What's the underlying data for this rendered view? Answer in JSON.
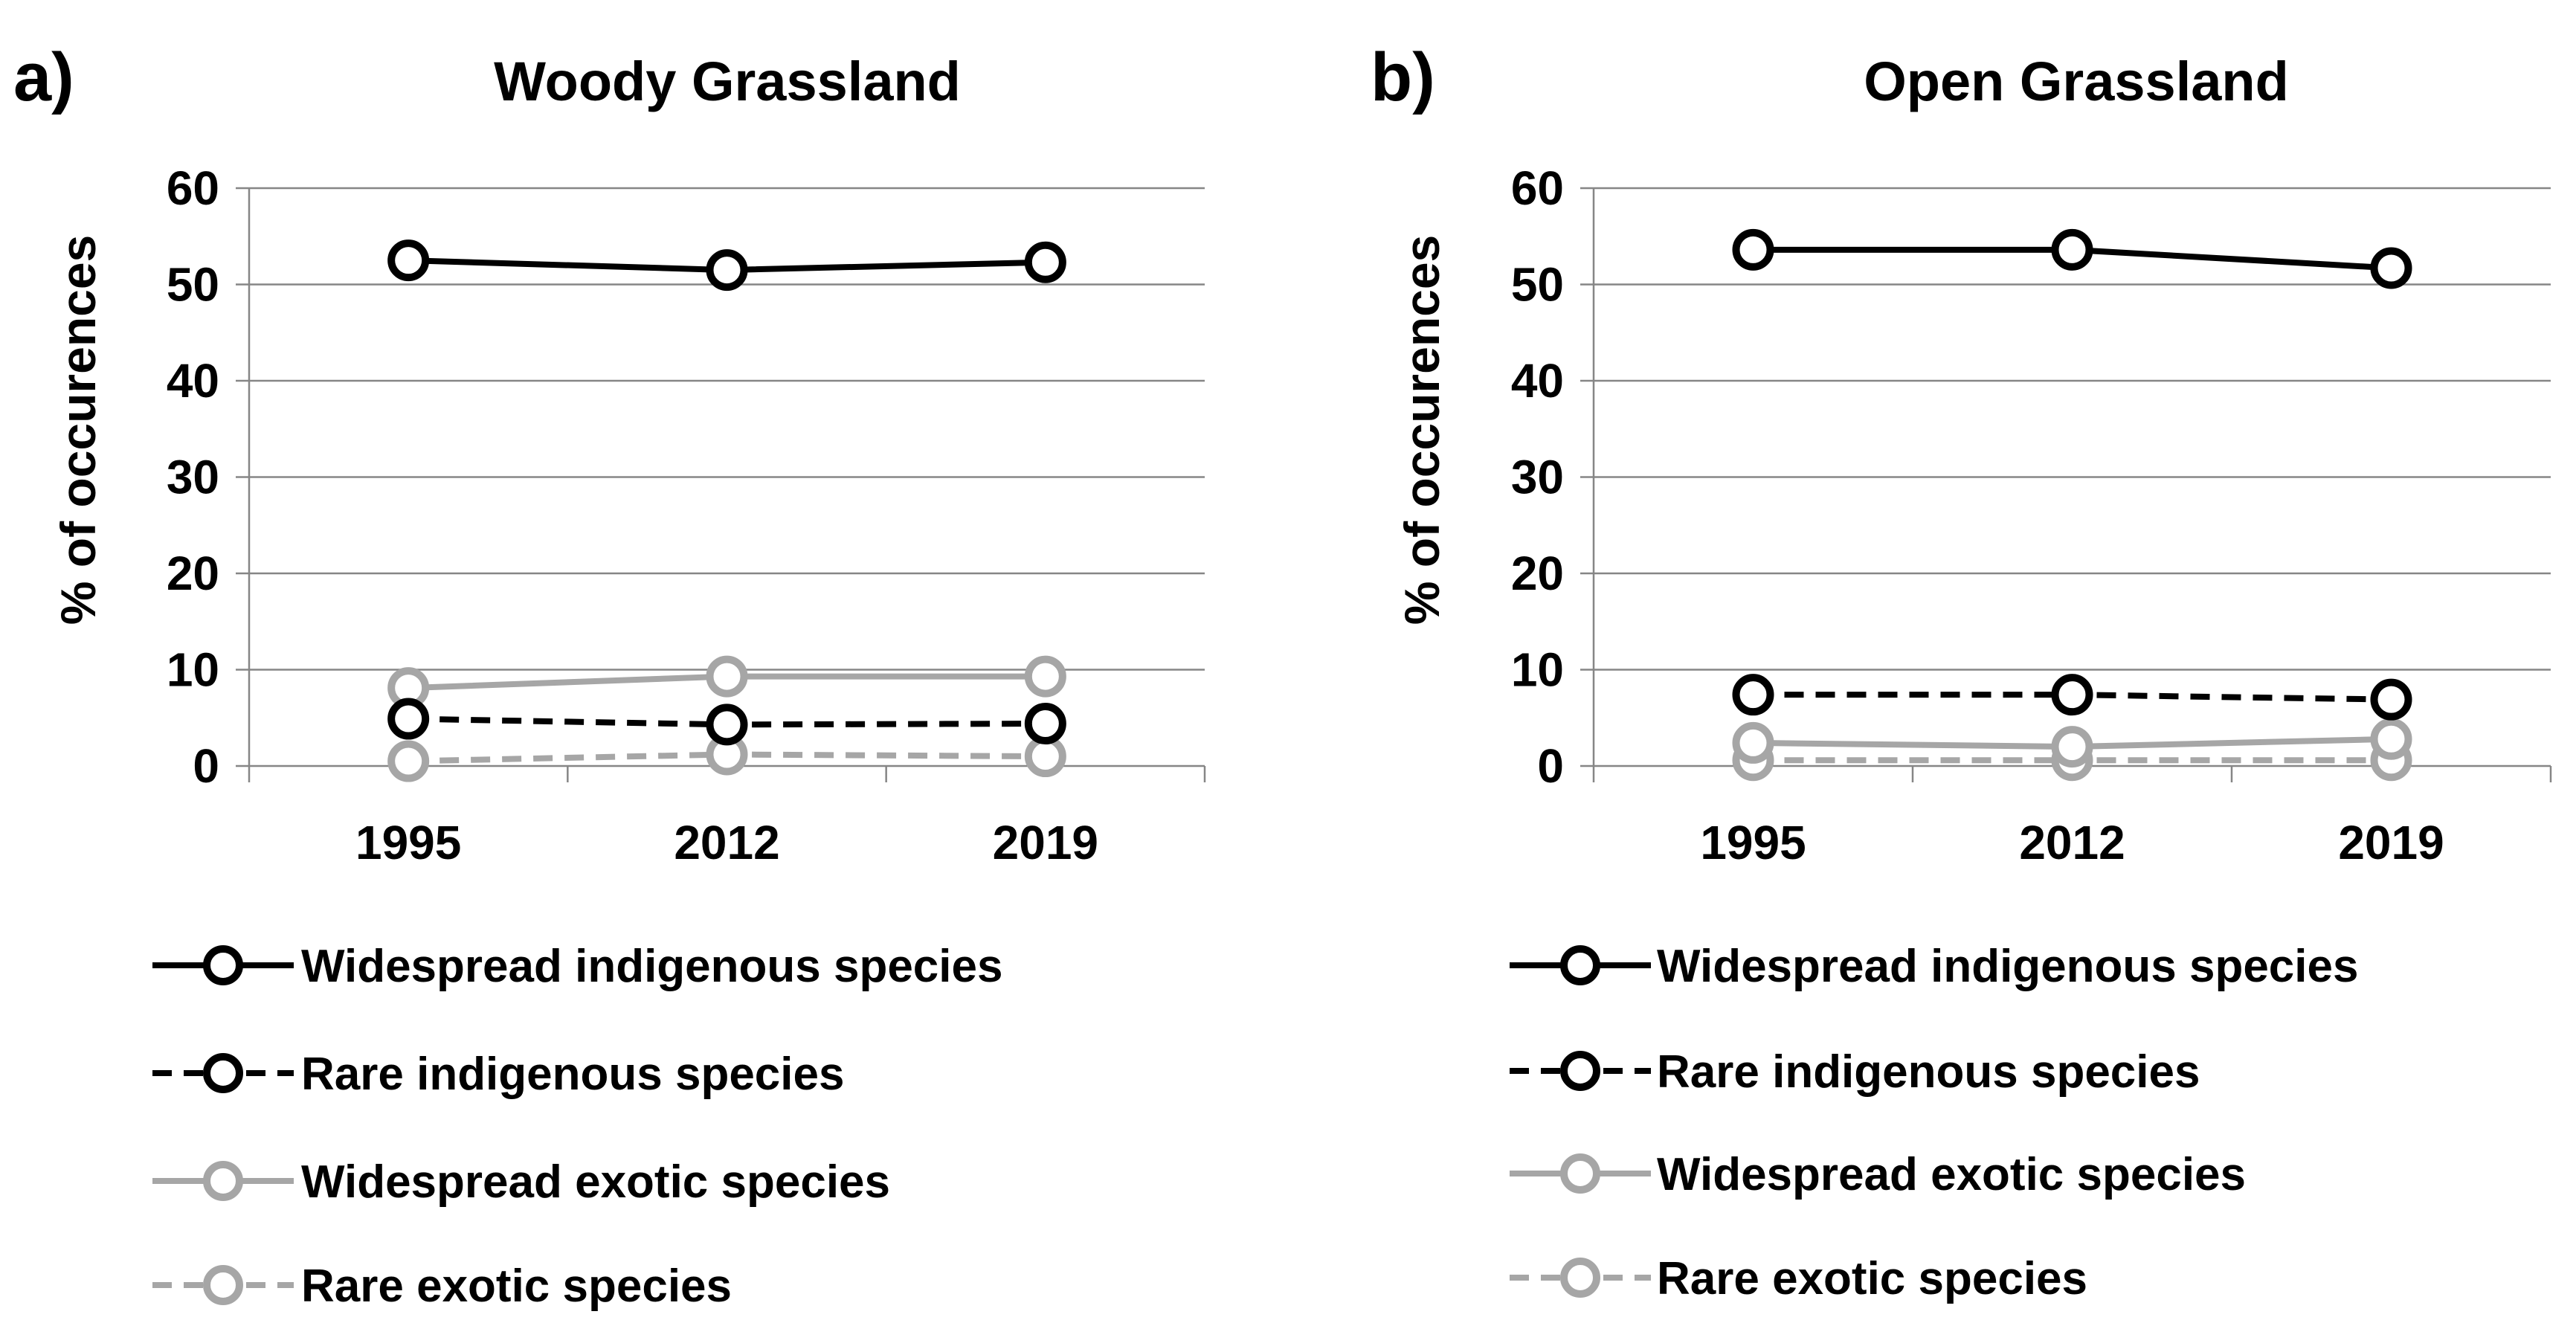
{
  "chart_data": [
    {
      "type": "line",
      "panel": "a)",
      "title": "Woody Grassland",
      "xlabel": "",
      "ylabel": "% of occurences",
      "categories": [
        "1995",
        "2012",
        "2019"
      ],
      "ylim": [
        0,
        60
      ],
      "yticks": [
        0,
        10,
        20,
        30,
        40,
        50,
        60
      ],
      "grid": true,
      "series": [
        {
          "name": "Widespread indigenous species",
          "values": [
            52.5,
            51.5,
            52.3
          ],
          "color": "#000000",
          "dashed": false
        },
        {
          "name": "Rare indigenous species",
          "values": [
            4.9,
            4.3,
            4.4
          ],
          "color": "#000000",
          "dashed": true
        },
        {
          "name": "Widespread exotic species",
          "values": [
            8.1,
            9.3,
            9.3
          ],
          "color": "#a6a6a6",
          "dashed": false
        },
        {
          "name": "Rare exotic species",
          "values": [
            0.5,
            1.2,
            1.0
          ],
          "color": "#a6a6a6",
          "dashed": true
        }
      ]
    },
    {
      "type": "line",
      "panel": "b)",
      "title": "Open Grassland",
      "xlabel": "",
      "ylabel": "% of occurences",
      "categories": [
        "1995",
        "2012",
        "2019"
      ],
      "ylim": [
        0,
        60
      ],
      "yticks": [
        0,
        10,
        20,
        30,
        40,
        50,
        60
      ],
      "grid": true,
      "series": [
        {
          "name": "Widespread indigenous species",
          "values": [
            53.6,
            53.6,
            51.7
          ],
          "color": "#000000",
          "dashed": false
        },
        {
          "name": "Rare indigenous species",
          "values": [
            7.4,
            7.4,
            6.9
          ],
          "color": "#000000",
          "dashed": true
        },
        {
          "name": "Widespread exotic species",
          "values": [
            2.4,
            2.0,
            2.8
          ],
          "color": "#a6a6a6",
          "dashed": false
        },
        {
          "name": "Rare exotic species",
          "values": [
            0.6,
            0.6,
            0.6
          ],
          "color": "#a6a6a6",
          "dashed": true
        }
      ]
    }
  ]
}
